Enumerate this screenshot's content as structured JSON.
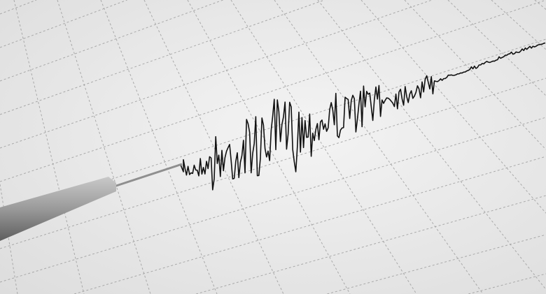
{
  "colors": {
    "paper": "#ededed",
    "grid": "#9a9a9a",
    "trace": "#111111",
    "needle": "#8a8a8a"
  },
  "icons": [
    "seismograph-needle"
  ]
}
